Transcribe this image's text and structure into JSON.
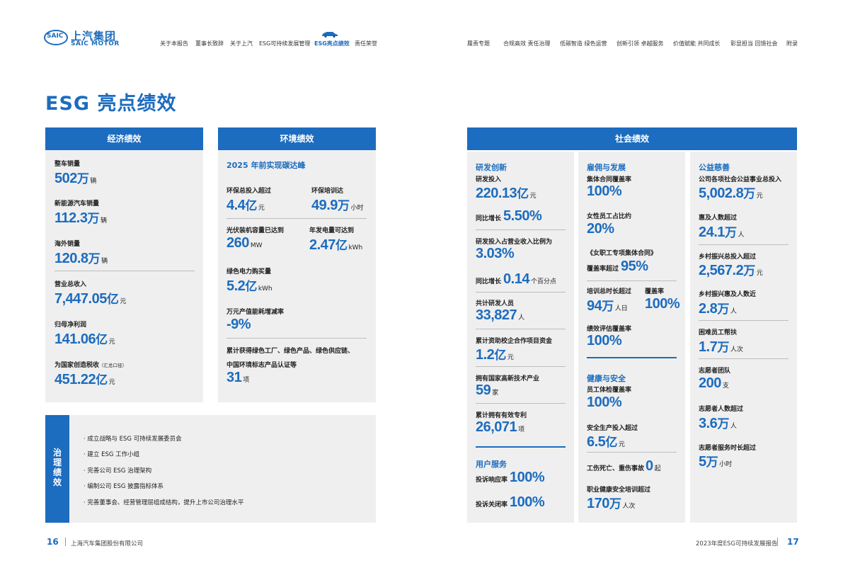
{
  "logo": {
    "mark": "SAIC",
    "cn": "上汽集团",
    "en": "SAIC MOTOR"
  },
  "nav_left": [
    "关于本报告",
    "董事长致辞",
    "关于上汽",
    "ESG可持续发展管理",
    "ESG亮点绩效",
    "责任荣誉"
  ],
  "nav_right": [
    "履责专题",
    "合规高效 责任治理",
    "低碳智造 绿色运营",
    "创新引领 卓越服务",
    "价值赋能 共同成长",
    "彰显担当 回馈社会",
    "附录"
  ],
  "page_title": "ESG 亮点绩效",
  "econ": {
    "header": "经济绩效",
    "items": [
      {
        "label": "整车销量",
        "num": "502",
        "unit": "万",
        "unit2": "辆"
      },
      {
        "label": "新能源汽车销量",
        "num": "112.3",
        "unit": "万",
        "unit2": "辆"
      },
      {
        "label": "海外销量",
        "num": "120.8",
        "unit": "万",
        "unit2": "辆"
      },
      {
        "label": "营业总收入",
        "num": "7,447.05",
        "unit": "亿",
        "unit2": "元"
      },
      {
        "label": "归母净利润",
        "num": "141.06",
        "unit": "亿",
        "unit2": "元"
      },
      {
        "label": "为国家创造税收",
        "label_note": "（汇总口径）",
        "num": "451.22",
        "unit": "亿",
        "unit2": "元"
      }
    ]
  },
  "env": {
    "header": "环境绩效",
    "headline": "2025 年前实现碳达峰",
    "i1": {
      "label": "环保总投入超过",
      "num": "4.4",
      "unit": "亿",
      "unit2": "元"
    },
    "i2": {
      "label": "环保培训达",
      "num": "49.9",
      "unit": "万",
      "unit2": "小时"
    },
    "i3": {
      "label": "光伏装机容量已达到",
      "num": "260",
      "unit2": "MW"
    },
    "i4": {
      "label": "年发电量可达到",
      "num": "2.47",
      "unit": "亿",
      "unit2": "kWh"
    },
    "i5": {
      "label": "绿色电力购买量",
      "num": "5.2",
      "unit": "亿",
      "unit2": "kWh"
    },
    "i6": {
      "label": "万元产值能耗增减率",
      "num": "-9%"
    },
    "i7": {
      "label1": "累计获得绿色工厂、绿色产品、绿色供应链、",
      "label2": "中国环境标志产品认证等",
      "num": "31",
      "unit2": "项"
    }
  },
  "gov": {
    "side": "治理绩效",
    "items": [
      "· 成立战略与 ESG 可持续发展委员会",
      "· 建立 ESG 工作小组",
      "· 完善公司 ESG 治理架构",
      "· 编制公司 ESG 披露指标体系",
      "· 完善董事会、经营管理层组成结构，提升上市公司治理水平"
    ]
  },
  "social": {
    "header": "社会绩效",
    "rd": {
      "title": "研发创新",
      "a": {
        "label": "研发投入",
        "num": "220.13",
        "unit": "亿",
        "unit2": "元"
      },
      "a2": {
        "prefix": "同比增长",
        "num": "5.50%"
      },
      "b": {
        "label": "研发投入占营业收入比例为",
        "num": "3.03%"
      },
      "b2": {
        "prefix": "同比增长",
        "num": "0.14",
        "unit2": "个百分点"
      },
      "c": {
        "label": "共计研发人员",
        "num": "33,827",
        "unit2": "人"
      },
      "d": {
        "label": "累计资助校企合作项目资金",
        "num": "1.2",
        "unit": "亿",
        "unit2": "元"
      },
      "e": {
        "label": "拥有国家高新技术产业",
        "num": "59",
        "unit2": "家"
      },
      "f": {
        "label": "累计拥有有效专利",
        "num": "26,071",
        "unit2": "项"
      }
    },
    "user": {
      "title": "用户服务",
      "a": {
        "prefix": "投诉响应率",
        "num": "100%"
      },
      "b": {
        "prefix": "投诉关闭率",
        "num": "100%"
      }
    },
    "emp": {
      "title": "雇佣与发展",
      "a": {
        "label": "集体合同覆盖率",
        "num": "100%"
      },
      "b": {
        "label": "女性员工占比约",
        "num": "20%"
      },
      "c": {
        "label": "《女职工专项集体合同》",
        "prefix": "覆盖率超过",
        "num": "95%"
      },
      "d": {
        "label": "培训总时长超过",
        "num": "94",
        "unit": "万",
        "unit2": "人日"
      },
      "d2": {
        "label": "覆盖率",
        "num": "100%"
      },
      "e": {
        "label": "绩效评估覆盖率",
        "num": "100%"
      }
    },
    "hs": {
      "title": "健康与安全",
      "a": {
        "label": "员工体检覆盖率",
        "num": "100%"
      },
      "b": {
        "label": "安全生产投入超过",
        "num": "6.5",
        "unit": "亿",
        "unit2": "元"
      },
      "c": {
        "prefix": "工伤死亡、重伤事故",
        "num": "0",
        "unit2": "起"
      },
      "d": {
        "label": "职业健康安全培训超过",
        "num": "170",
        "unit": "万",
        "unit2": "人次"
      }
    },
    "pub": {
      "title": "公益慈善",
      "a": {
        "label": "公司各项社会公益事业总投入",
        "num": "5,002.8",
        "unit": "万",
        "unit2": "元"
      },
      "b": {
        "label": "惠及人数超过",
        "num": "24.1",
        "unit": "万",
        "unit2": "人"
      },
      "c": {
        "label": "乡村振兴总投入超过",
        "num": "2,567.2",
        "unit": "万",
        "unit2": "元"
      },
      "d": {
        "label": "乡村振兴惠及人数近",
        "num": "2.8",
        "unit": "万",
        "unit2": "人"
      },
      "e": {
        "label": "困难员工帮扶",
        "num": "1.7",
        "unit": "万",
        "unit2": "人次"
      },
      "f": {
        "label": "志愿者团队",
        "num": "200",
        "unit2": "支"
      },
      "g": {
        "label": "志愿者人数超过",
        "num": "3.6",
        "unit": "万",
        "unit2": "人"
      },
      "h": {
        "label": "志愿者服务时长超过",
        "num": "5",
        "unit": "万",
        "unit2": "小时"
      }
    }
  },
  "footer": {
    "left_page": "16",
    "left_text": "上海汽车集团股份有限公司",
    "right_text": "2023年度ESG可持续发展报告",
    "right_page": "17"
  }
}
